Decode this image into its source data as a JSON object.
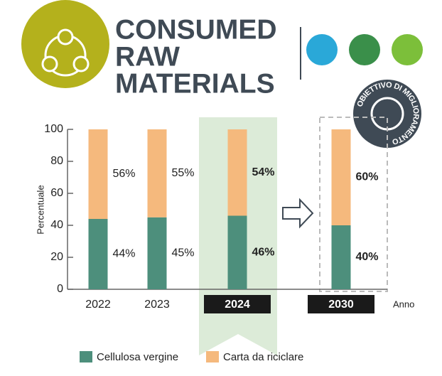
{
  "chart_data": {
    "type": "stacked-bar",
    "title": [
      "CONSUMED",
      "RAW",
      "MATERIALS"
    ],
    "badge": "OBIETTIVO DI MIGLIORAMENTO",
    "ylabel": "Percentuale",
    "xlabel": "Anno",
    "categories": [
      "2022",
      "2023",
      "2024",
      "2030"
    ],
    "highlight": [
      "2024",
      "2030"
    ],
    "series": [
      {
        "name": "Cellulosa vergine",
        "color": "#4d8f7c",
        "values": [
          44,
          45,
          46,
          40
        ],
        "value_labels": [
          "44%",
          "45%",
          "46%",
          "40%"
        ]
      },
      {
        "name": "Carta da riciclare",
        "color": "#f5b97d",
        "values": [
          56,
          55,
          54,
          60
        ],
        "value_labels": [
          "56%",
          "55%",
          "54%",
          "60%"
        ]
      }
    ],
    "ylim": [
      0,
      100
    ],
    "yticks": [
      0,
      20,
      40,
      60,
      80,
      100
    ]
  }
}
